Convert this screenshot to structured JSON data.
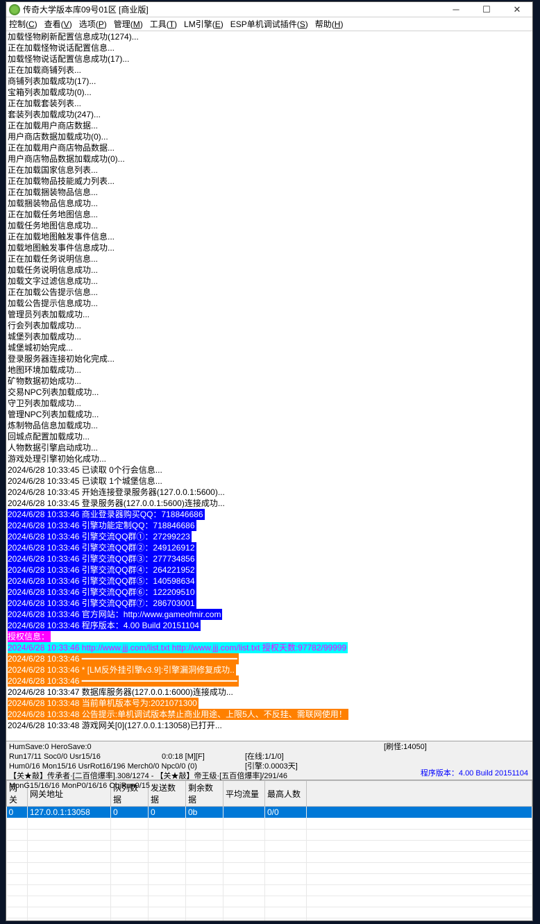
{
  "window": {
    "title": "传奇大学版本库09号01区 [商业版]"
  },
  "menubar": [
    {
      "label": "控制",
      "u": "C"
    },
    {
      "label": "查看",
      "u": "V"
    },
    {
      "label": "选项",
      "u": "P"
    },
    {
      "label": "管理",
      "u": "M"
    },
    {
      "label": "工具",
      "u": "T"
    },
    {
      "label": "LM引擎",
      "u": "E"
    },
    {
      "label": "ESP单机调试插件",
      "u": "S"
    },
    {
      "label": "帮助",
      "u": "H"
    }
  ],
  "log": [
    {
      "t": "加载怪物刷新配置信息成功(1274)..."
    },
    {
      "t": "正在加载怪物说话配置信息..."
    },
    {
      "t": "加载怪物说话配置信息成功(17)..."
    },
    {
      "t": "正在加载商铺列表..."
    },
    {
      "t": "商铺列表加载成功(17)..."
    },
    {
      "t": "宝箱列表加载成功(0)..."
    },
    {
      "t": "正在加载套装列表..."
    },
    {
      "t": "套装列表加载成功(247)..."
    },
    {
      "t": "正在加载用户商店数据..."
    },
    {
      "t": "用户商店数据加载成功(0)..."
    },
    {
      "t": "正在加载用户商店物品数据..."
    },
    {
      "t": "用户商店物品数据加载成功(0)..."
    },
    {
      "t": "正在加载国家信息列表..."
    },
    {
      "t": "正在加载物品技能威力列表..."
    },
    {
      "t": "正在加载捆装物品信息..."
    },
    {
      "t": "加载捆装物品信息成功..."
    },
    {
      "t": "正在加载任务地图信息..."
    },
    {
      "t": "加载任务地图信息成功..."
    },
    {
      "t": "正在加载地图触发事件信息..."
    },
    {
      "t": "加载地图触发事件信息成功..."
    },
    {
      "t": "正在加载任务说明信息..."
    },
    {
      "t": "加载任务说明信息成功..."
    },
    {
      "t": "加载文字过滤信息成功..."
    },
    {
      "t": "正在加载公告提示信息..."
    },
    {
      "t": "加载公告提示信息成功..."
    },
    {
      "t": "管理员列表加载成功..."
    },
    {
      "t": "行会列表加载成功..."
    },
    {
      "t": "城堡列表加载成功..."
    },
    {
      "t": "城堡城初始完成..."
    },
    {
      "t": "登录服务器连接初始化完成..."
    },
    {
      "t": "地图环境加载成功..."
    },
    {
      "t": "矿物数据初始成功..."
    },
    {
      "t": "交易NPC列表加载成功..."
    },
    {
      "t": "守卫列表加载成功..."
    },
    {
      "t": "管理NPC列表加载成功..."
    },
    {
      "t": "炼制物品信息加载成功..."
    },
    {
      "t": "回城点配置加载成功..."
    },
    {
      "t": "人物数据引擎启动成功..."
    },
    {
      "t": "游戏处理引擎初始化成功..."
    },
    {
      "t": "2024/6/28 10:33:45 已读取 0个行会信息..."
    },
    {
      "t": "2024/6/28 10:33:45 已读取 1个城堡信息..."
    },
    {
      "t": "2024/6/28 10:33:45 开始连接登录服务器(127.0.0.1:5600)..."
    },
    {
      "t": "2024/6/28 10:33:45 登录服务器(127.0.0.1:5600)连接成功..."
    },
    {
      "t": "2024/6/28 10:33:46 商业登录器购买QQ：718846686",
      "c": "blue"
    },
    {
      "t": "2024/6/28 10:33:46 引擎功能定制QQ：718846686",
      "c": "blue"
    },
    {
      "t": "2024/6/28 10:33:46 引擎交流QQ群①：27299223",
      "c": "blue"
    },
    {
      "t": "2024/6/28 10:33:46 引擎交流QQ群②：249126912",
      "c": "blue"
    },
    {
      "t": "2024/6/28 10:33:46 引擎交流QQ群③：277734856",
      "c": "blue"
    },
    {
      "t": "2024/6/28 10:33:46 引擎交流QQ群④：264221952",
      "c": "blue"
    },
    {
      "t": "2024/6/28 10:33:46 引擎交流QQ群⑤：140598634",
      "c": "blue"
    },
    {
      "t": "2024/6/28 10:33:46 引擎交流QQ群⑥：122209510",
      "c": "blue"
    },
    {
      "t": "2024/6/28 10:33:46 引擎交流QQ群⑦：286703001",
      "c": "blue"
    },
    {
      "t": "2024/6/28 10:33:46 官方网站：http://www.gameofmir.com",
      "c": "blue"
    },
    {
      "t": "2024/6/28 10:33:46 程序版本：4.00 Build 20151104",
      "c": "blue"
    },
    {
      "t": "授权信息：",
      "c": "mag"
    },
    {
      "t": "2024/6/28 10:33:46 http://www.jjj.com/list.txt http://www.jjj.com/list.txt 授权天数:97782/99999",
      "c": "cyan"
    },
    {
      "t": "2024/6/28 10:33:46 ━━━━━━━━━━━━━━━━━━━━━━━━━━━━━━━",
      "c": "org"
    },
    {
      "t": "2024/6/28 10:33:46 * [LM反外挂引擎v3.9]:引擎漏洞修复成功..",
      "c": "org"
    },
    {
      "t": "2024/6/28 10:33:46 ━━━━━━━━━━━━━━━━━━━━━━━━━━━━━━━",
      "c": "org"
    },
    {
      "t": "2024/6/28 10:33:47 数据库服务器(127.0.0.1:6000)连接成功..."
    },
    {
      "t": "2024/6/28 10:33:48 当前单机版本号为:2021071300",
      "c": "org"
    },
    {
      "t": "2024/6/28 10:33:48 公告提示:单机调试版本禁止商业用途、上限5人、不反挂、需联网使用！",
      "c": "org"
    },
    {
      "t": "2024/6/28 10:33:48 游戏网关[0](127.0.0.1:13058)已打开..."
    }
  ],
  "status": {
    "line1a": "HumSave:0 HeroSave:0",
    "line2a": "Run17/11 Soc0/0 Usr15/16",
    "line2b": "0:0:18 [M][F]",
    "line2c": "[刷怪:14050]",
    "line3a": "Hum0/16 Mon15/16 UsrRot16/196 Merch0/0 Npc0/0 (0)",
    "line3c": "[在线:1/1/0]",
    "line4a": "【关★敲】传承者·[二百倍爆率].308/1274 - 【关★敲】帝王级·[五百倍爆率]/291/46",
    "line4c": "[引擎:0.0003天]",
    "line5a": "MonG15/16/16 MonP0/16/16 ObjRun0/15",
    "version": "程序版本：4.00 Build 20151104"
  },
  "grid": {
    "cols": [
      "网关",
      "网关地址",
      "队列数据",
      "发送数据",
      "剩余数据",
      "平均流量",
      "最高人数"
    ],
    "row": {
      "gw": "0",
      "addr": "127.0.0.1:13058",
      "q": "0",
      "s": "0",
      "r": "0b",
      "avg": "",
      "max": "0/0"
    }
  }
}
